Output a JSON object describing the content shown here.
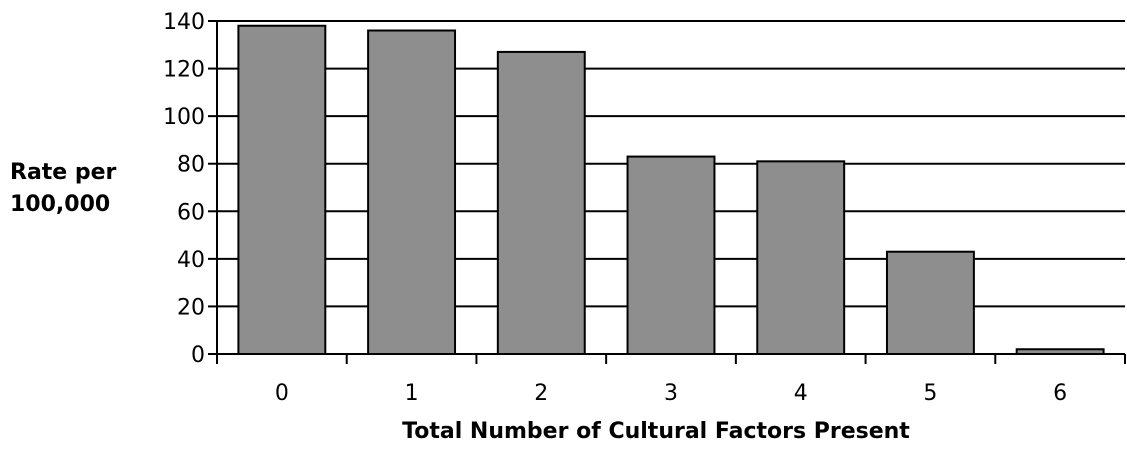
{
  "chart_data": {
    "type": "bar",
    "title": "",
    "xlabel": "Total Number of Cultural Factors Present",
    "ylabel_lines": [
      "Rate per",
      "100,000"
    ],
    "categories": [
      "0",
      "1",
      "2",
      "3",
      "4",
      "5",
      "6"
    ],
    "values": [
      138,
      136,
      127,
      83,
      81,
      43,
      2
    ],
    "ylim": [
      0,
      140
    ],
    "yticks": [
      "0",
      "20",
      "40",
      "60",
      "80",
      "100",
      "120",
      "140"
    ],
    "grid": true,
    "legend": "none",
    "colors": {
      "bar_fill": "#8e8e8e",
      "bar_stroke": "#000000",
      "gridline": "#000000",
      "axis": "#000000"
    }
  }
}
